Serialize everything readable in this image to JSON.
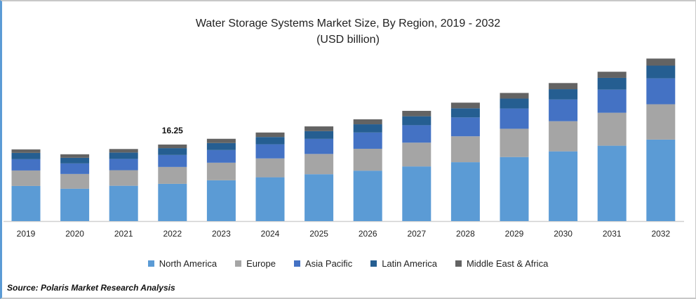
{
  "chart_data": {
    "type": "bar",
    "stacked": true,
    "title": "Water Storage Systems Market Size, By Region, 2019 - 2032",
    "subtitle": "(USD billion)",
    "categories": [
      "2019",
      "2020",
      "2021",
      "2022",
      "2023",
      "2024",
      "2025",
      "2026",
      "2027",
      "2028",
      "2029",
      "2030",
      "2031",
      "2032"
    ],
    "series": [
      {
        "name": "North America",
        "color": "#5b9bd5",
        "values": [
          7.46,
          6.87,
          7.5,
          7.91,
          8.66,
          9.3,
          9.95,
          10.7,
          11.6,
          12.5,
          13.6,
          14.8,
          16.0,
          17.3
        ]
      },
      {
        "name": "Europe",
        "color": "#a5a5a5",
        "values": [
          3.28,
          3.13,
          3.3,
          3.58,
          3.73,
          4.0,
          4.3,
          4.65,
          5.05,
          5.5,
          6.0,
          6.4,
          7.0,
          7.5
        ]
      },
      {
        "name": "Asia Pacific",
        "color": "#4472c4",
        "values": [
          2.39,
          2.24,
          2.4,
          2.54,
          2.69,
          3.0,
          3.2,
          3.45,
          3.7,
          4.0,
          4.3,
          4.6,
          4.9,
          5.5
        ]
      },
      {
        "name": "Latin America",
        "color": "#255e91",
        "values": [
          1.34,
          1.19,
          1.35,
          1.45,
          1.49,
          1.55,
          1.65,
          1.75,
          1.9,
          1.94,
          2.1,
          2.2,
          2.5,
          2.7
        ]
      },
      {
        "name": "Middle East & Africa",
        "color": "#636363",
        "values": [
          0.75,
          0.75,
          0.75,
          0.77,
          0.9,
          0.95,
          1.0,
          1.05,
          1.15,
          1.2,
          1.2,
          1.3,
          1.3,
          1.5
        ]
      }
    ],
    "annotations": [
      {
        "category": "2022",
        "label": "16.25"
      }
    ],
    "ylim": [
      0,
      36.5
    ],
    "grid": false,
    "legend": "bottom"
  },
  "source": "Source: Polaris  Market Research Analysis"
}
